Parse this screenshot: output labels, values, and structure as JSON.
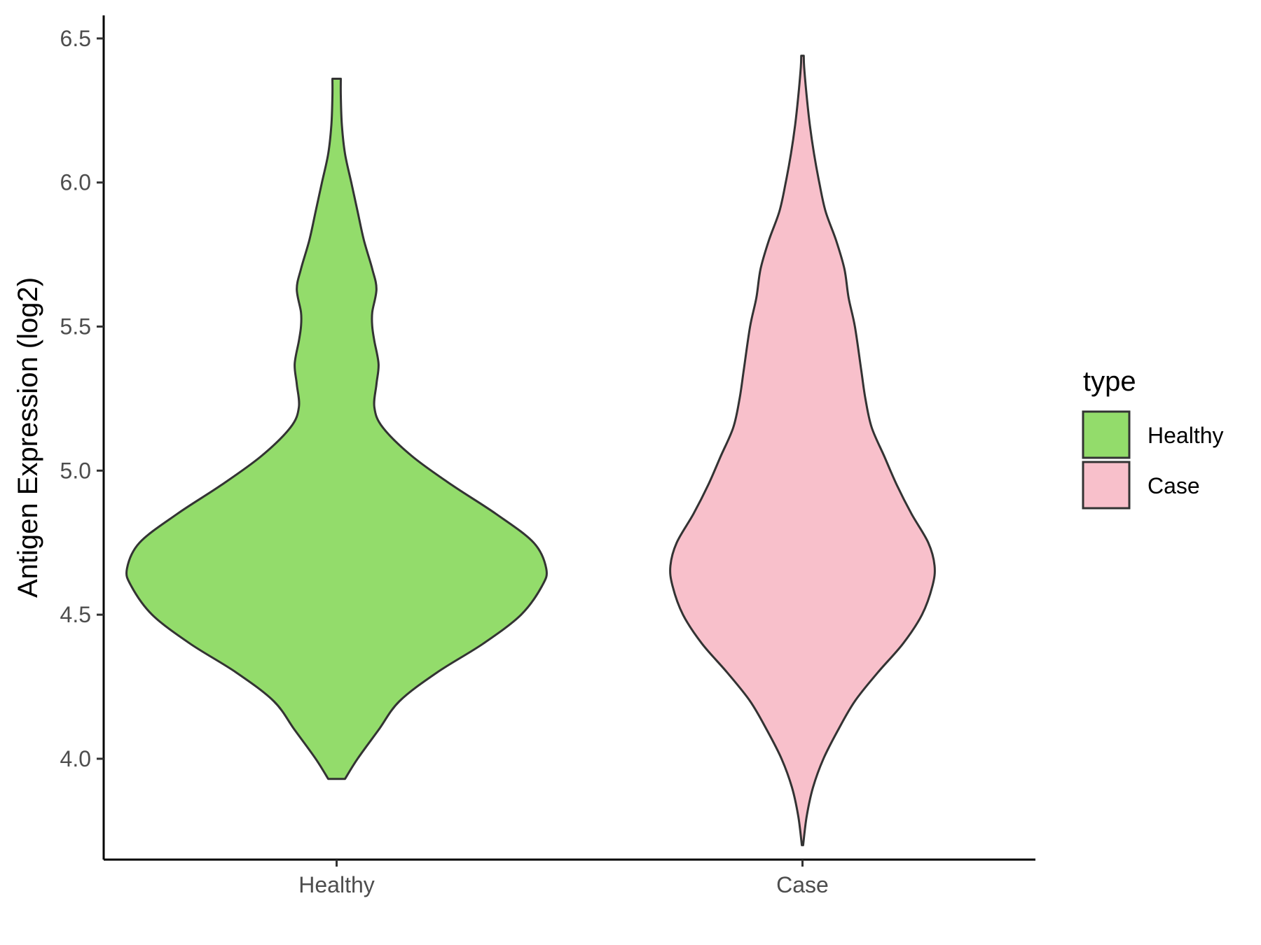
{
  "chart_data": {
    "type": "violin",
    "title": "",
    "xlabel": "",
    "ylabel": "Antigen Expression (log2)",
    "ylim": [
      3.65,
      6.58
    ],
    "yticks": [
      4.0,
      4.5,
      5.0,
      5.5,
      6.0,
      6.5
    ],
    "ytick_labels": [
      "4.0",
      "4.5",
      "5.0",
      "5.5",
      "6.0",
      "6.5"
    ],
    "categories": [
      "Healthy",
      "Case"
    ],
    "grid": false,
    "legend": {
      "title": "type",
      "position": "right",
      "entries": [
        "Healthy",
        "Case"
      ]
    },
    "series": [
      {
        "name": "Healthy",
        "color": "#93DC6B",
        "min": 3.93,
        "max": 6.36,
        "density": [
          [
            3.93,
            0.04
          ],
          [
            4.0,
            0.1
          ],
          [
            4.1,
            0.2
          ],
          [
            4.2,
            0.3
          ],
          [
            4.3,
            0.48
          ],
          [
            4.4,
            0.7
          ],
          [
            4.5,
            0.88
          ],
          [
            4.6,
            0.98
          ],
          [
            4.66,
            1.0
          ],
          [
            4.75,
            0.94
          ],
          [
            4.85,
            0.76
          ],
          [
            4.95,
            0.55
          ],
          [
            5.05,
            0.36
          ],
          [
            5.15,
            0.22
          ],
          [
            5.22,
            0.18
          ],
          [
            5.3,
            0.19
          ],
          [
            5.37,
            0.2
          ],
          [
            5.45,
            0.18
          ],
          [
            5.5,
            0.17
          ],
          [
            5.55,
            0.17
          ],
          [
            5.63,
            0.19
          ],
          [
            5.7,
            0.17
          ],
          [
            5.8,
            0.13
          ],
          [
            5.9,
            0.1
          ],
          [
            6.0,
            0.07
          ],
          [
            6.1,
            0.04
          ],
          [
            6.2,
            0.025
          ],
          [
            6.3,
            0.02
          ],
          [
            6.36,
            0.02
          ]
        ]
      },
      {
        "name": "Case",
        "color": "#F8C0CB",
        "min": 3.7,
        "max": 6.44,
        "density": [
          [
            3.7,
            0.003
          ],
          [
            3.8,
            0.02
          ],
          [
            3.9,
            0.05
          ],
          [
            4.0,
            0.1
          ],
          [
            4.1,
            0.17
          ],
          [
            4.2,
            0.25
          ],
          [
            4.3,
            0.36
          ],
          [
            4.4,
            0.48
          ],
          [
            4.5,
            0.57
          ],
          [
            4.6,
            0.62
          ],
          [
            4.67,
            0.63
          ],
          [
            4.75,
            0.6
          ],
          [
            4.85,
            0.52
          ],
          [
            4.95,
            0.45
          ],
          [
            5.05,
            0.39
          ],
          [
            5.15,
            0.33
          ],
          [
            5.25,
            0.3
          ],
          [
            5.35,
            0.28
          ],
          [
            5.5,
            0.25
          ],
          [
            5.6,
            0.22
          ],
          [
            5.7,
            0.2
          ],
          [
            5.8,
            0.16
          ],
          [
            5.9,
            0.11
          ],
          [
            6.0,
            0.08
          ],
          [
            6.1,
            0.055
          ],
          [
            6.2,
            0.035
          ],
          [
            6.3,
            0.02
          ],
          [
            6.4,
            0.008
          ],
          [
            6.44,
            0.006
          ]
        ]
      }
    ]
  }
}
